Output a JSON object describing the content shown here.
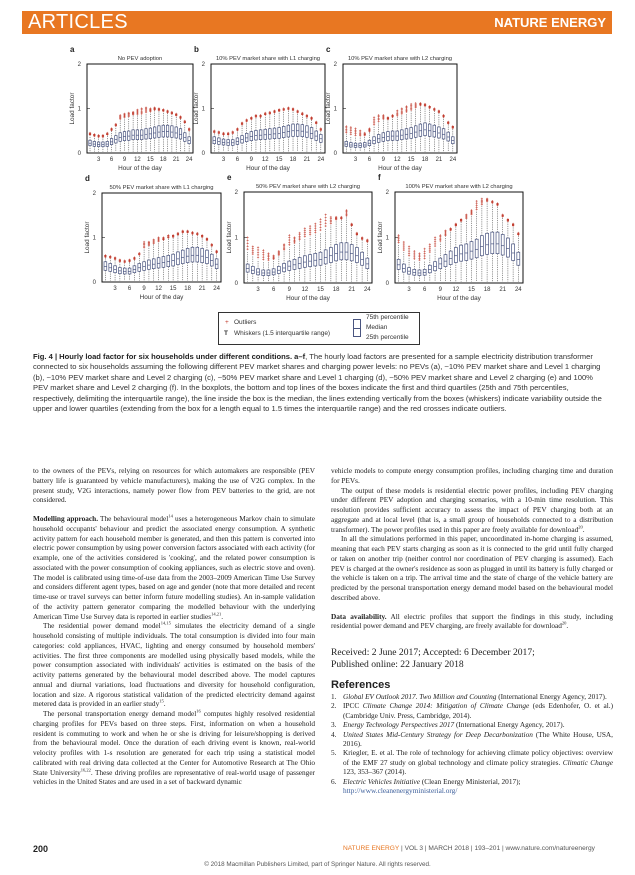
{
  "header": {
    "section": "ARTICLES",
    "journal": "NATURE ENERGY"
  },
  "chart_data": [
    {
      "panel": "a",
      "type": "boxplot",
      "title": "No PEV adoption",
      "xlabel": "Hour of the day",
      "ylabel": "Load factor",
      "ylim": [
        0,
        2
      ],
      "yticks": [
        0,
        1,
        2
      ],
      "xticks": [
        3,
        6,
        9,
        12,
        15,
        18,
        21,
        24
      ],
      "median": [
        0.22,
        0.2,
        0.19,
        0.19,
        0.2,
        0.25,
        0.3,
        0.35,
        0.37,
        0.38,
        0.4,
        0.4,
        0.4,
        0.42,
        0.43,
        0.45,
        0.47,
        0.48,
        0.48,
        0.47,
        0.45,
        0.42,
        0.35,
        0.28
      ],
      "q1_ratio": 0.75,
      "q3_ratio": 1.3,
      "outlier_max": [
        0.45,
        0.42,
        0.4,
        0.4,
        0.45,
        0.55,
        0.65,
        0.85,
        0.88,
        0.9,
        0.92,
        0.97,
        1.0,
        1.02,
        1.0,
        1.02,
        1.0,
        0.98,
        0.95,
        0.92,
        0.88,
        0.82,
        0.72,
        0.55
      ]
    },
    {
      "panel": "b",
      "type": "boxplot",
      "title": "10% PEV market share with L1 charging",
      "xlabel": "Hour of the day",
      "ylabel": "Load factor",
      "ylim": [
        0,
        2
      ],
      "yticks": [
        0,
        1,
        2
      ],
      "xticks": [
        3,
        6,
        9,
        12,
        15,
        18,
        21,
        24
      ],
      "median": [
        0.28,
        0.26,
        0.24,
        0.23,
        0.23,
        0.26,
        0.3,
        0.34,
        0.37,
        0.39,
        0.4,
        0.41,
        0.42,
        0.43,
        0.44,
        0.46,
        0.48,
        0.5,
        0.5,
        0.49,
        0.47,
        0.44,
        0.38,
        0.32
      ],
      "q1_ratio": 0.75,
      "q3_ratio": 1.3,
      "outlier_max": [
        0.5,
        0.48,
        0.45,
        0.45,
        0.48,
        0.55,
        0.68,
        0.75,
        0.8,
        0.85,
        0.85,
        0.9,
        0.92,
        0.95,
        0.98,
        1.0,
        1.02,
        1.0,
        0.95,
        0.9,
        0.85,
        0.8,
        0.7,
        0.55
      ]
    },
    {
      "panel": "c",
      "type": "boxplot",
      "title": "10% PEV market share with L2 charging",
      "xlabel": "Hour of the day",
      "ylabel": "Load factor",
      "ylim": [
        0,
        2
      ],
      "yticks": [
        0,
        1,
        2
      ],
      "xticks": [
        3,
        6,
        9,
        12,
        15,
        18,
        21,
        24
      ],
      "median": [
        0.2,
        0.18,
        0.17,
        0.17,
        0.18,
        0.22,
        0.28,
        0.32,
        0.35,
        0.37,
        0.38,
        0.38,
        0.4,
        0.42,
        0.44,
        0.47,
        0.5,
        0.52,
        0.5,
        0.48,
        0.45,
        0.42,
        0.36,
        0.28
      ],
      "q1_ratio": 0.75,
      "q3_ratio": 1.3,
      "outlier_max": [
        0.6,
        0.58,
        0.55,
        0.5,
        0.45,
        0.55,
        0.8,
        0.85,
        0.85,
        0.8,
        0.85,
        0.95,
        1.0,
        1.05,
        1.1,
        1.12,
        1.12,
        1.1,
        1.05,
        1.0,
        0.95,
        0.85,
        0.7,
        0.6
      ]
    },
    {
      "panel": "d",
      "type": "boxplot",
      "title": "50% PEV market share with L1 charging",
      "xlabel": "Hour of the day",
      "ylabel": "Load factor",
      "ylim": [
        0,
        2
      ],
      "yticks": [
        0,
        1,
        2
      ],
      "xticks": [
        3,
        6,
        9,
        12,
        15,
        18,
        21,
        24
      ],
      "median": [
        0.35,
        0.32,
        0.28,
        0.25,
        0.24,
        0.24,
        0.28,
        0.32,
        0.35,
        0.38,
        0.4,
        0.42,
        0.44,
        0.46,
        0.48,
        0.52,
        0.55,
        0.58,
        0.6,
        0.6,
        0.58,
        0.55,
        0.48,
        0.4
      ],
      "q1_ratio": 0.75,
      "q3_ratio": 1.3,
      "outlier_max": [
        0.6,
        0.58,
        0.55,
        0.5,
        0.48,
        0.5,
        0.55,
        0.65,
        0.9,
        0.9,
        0.95,
        1.0,
        1.0,
        1.05,
        1.05,
        1.1,
        1.15,
        1.15,
        1.12,
        1.1,
        1.05,
        0.98,
        0.85,
        0.7
      ]
    },
    {
      "panel": "e",
      "type": "boxplot",
      "title": "50% PEV market share with L2 charging",
      "xlabel": "Hour of the day",
      "ylabel": "Load factor",
      "ylim": [
        0,
        2
      ],
      "yticks": [
        0,
        1,
        2
      ],
      "xticks": [
        3,
        6,
        9,
        12,
        15,
        18,
        21,
        24
      ],
      "median": [
        0.32,
        0.28,
        0.24,
        0.22,
        0.22,
        0.24,
        0.28,
        0.33,
        0.37,
        0.4,
        0.43,
        0.46,
        0.48,
        0.5,
        0.52,
        0.56,
        0.6,
        0.65,
        0.68,
        0.68,
        0.65,
        0.6,
        0.52,
        0.42
      ],
      "q1_ratio": 0.75,
      "q3_ratio": 1.3,
      "outlier_max": [
        1.0,
        0.8,
        0.78,
        0.72,
        0.65,
        0.6,
        0.7,
        0.85,
        1.05,
        1.0,
        1.1,
        1.2,
        1.25,
        1.3,
        1.4,
        1.5,
        1.45,
        1.45,
        1.45,
        1.6,
        1.3,
        1.1,
        1.0,
        0.95
      ]
    },
    {
      "panel": "f",
      "type": "boxplot",
      "title": "100% PEV market share with L2 charging",
      "xlabel": "Hour of the day",
      "ylabel": "Load factor",
      "ylim": [
        0,
        2
      ],
      "yticks": [
        0,
        1,
        2
      ],
      "xticks": [
        3,
        6,
        9,
        12,
        15,
        18,
        21,
        24
      ],
      "median": [
        0.4,
        0.32,
        0.26,
        0.23,
        0.22,
        0.23,
        0.3,
        0.36,
        0.42,
        0.48,
        0.54,
        0.6,
        0.64,
        0.66,
        0.7,
        0.74,
        0.8,
        0.84,
        0.86,
        0.86,
        0.82,
        0.76,
        0.66,
        0.52
      ],
      "q1_ratio": 0.75,
      "q3_ratio": 1.3,
      "outlier_max": [
        1.05,
        0.9,
        0.8,
        0.7,
        0.65,
        0.75,
        0.85,
        1.0,
        1.05,
        1.15,
        1.2,
        1.3,
        1.4,
        1.5,
        1.6,
        1.8,
        1.85,
        1.85,
        1.8,
        1.75,
        1.5,
        1.4,
        1.3,
        1.1
      ]
    }
  ],
  "colors": {
    "accent": "#e87722",
    "outlier": "#c0392b",
    "box": "#4a5580"
  },
  "legend": {
    "outliers": "Outliers",
    "whiskers": "Whiskers (1.5 interquartile range)",
    "p75": "75th percentile",
    "median": "Median",
    "p25": "25th percentile"
  },
  "caption": {
    "bold": "Fig. 4 | Hourly load factor for six households under different conditions. a–f",
    "text": ", The hourly load factors are presented for a sample electricity distribution transformer connected to six households assuming the following different PEV market shares and charging power levels: no PEVs (a), ~10% PEV market share and Level 1 charging (b), ~10% PEV market share and Level 2 charging (c), ~50% PEV market share and Level 1 charging (d), ~50% PEV market share and Level 2 charging (e) and 100% PEV market share and Level 2 charging (f). In the boxplots, the bottom and top lines of the boxes indicate the first and third quartiles (25th and 75th percentiles, respectively, delimiting the interquartile range), the line inside the box is the median, the lines extending vertically from the boxes (whiskers) indicate variability outside the upper and lower quartiles (extending from the box for a length equal to 1.5 times the interquartile range) and the red crosses indicate outliers."
  },
  "left": {
    "p1": "to the owners of the PEVs, relying on resources for which automakers are responsible (PEV battery life is guaranteed by vehicle manufacturers), making the use of V2G complex. In the present study, V2G interactions, namely power flow from PEV batteries to the grid, are not considered.",
    "p2_head": "Modelling approach.",
    "p2a": " The behavioural model",
    "p2a_ref": "14",
    "p2b": " uses a heterogeneous Markov chain to simulate household occupants' behaviour and predict the associated energy consumption. A synthetic activity pattern for each household member is generated, and then this pattern is converted into electric power consumption by using power conversion factors associated with each activity (for example, one of the activities considered is 'cooking', and the related power consumption is associated with the power consumption of cooking appliances, such as electric stove and oven). The model is calibrated using time-of-use data from the 2003–2009 American Time Use Survey and considers different agent types, based on age and gender (note that more detailed and recent time-use or travel surveys can better inform future modelling studies). An in-sample validation of the activity pattern generator comparing the modelled behaviour with the underlying American Time Use Survey data is reported in earlier studies",
    "p2b_ref": "14,21",
    "p3a": "The residential power demand model",
    "p3a_ref": "14,15",
    "p3b": " simulates the electricity demand of a single household consisting of multiple individuals. The total consumption is divided into four main categories: cold appliances, HVAC, lighting and energy consumed by household members' activities. The first three components are modelled using physically based models, while the power consumption associated with individuals' activities is estimated on the basis of the activity patterns generated by the behavioural model described above. The model captures annual and diurnal variations, load fluctuations and diversity for household configuration, location and size. A rigorous statistical validation of the predicted electricity demand against metered data is provided in an earlier study",
    "p3b_ref": "15",
    "p4a": "The personal transportation energy demand model",
    "p4a_ref": "16",
    "p4b": " computes highly resolved residential charging profiles for PEVs based on three steps. First, information on when a household resident is commuting to work and when he or she is driving for leisure/shopping is derived from the behavioural model. Once the duration of each driving event is known, real-world velocity profiles with 1-s resolution are generated for each trip using a statistical model calibrated with real driving data collected at the Center for Automotive Research at The Ohio State University",
    "p4b_ref": "16,22",
    "p4c": ". These driving profiles are representative of real-world usage of passenger vehicles in the United States and are used in a set of backward dynamic"
  },
  "right": {
    "p1": "vehicle models to compute energy consumption profiles, including charging time and duration for PEVs.",
    "p2a": "The output of these models is residential electric power profiles, including PEV charging under different PEV adoption and charging scenarios, with a 10-min time resolution. This resolution provides sufficient accuracy to assess the impact of PEV charging both at an aggregate and at local level (that is, a small group of households connected to a distribution transformer). The power profiles used in this paper are freely available for download",
    "p2_ref": "20",
    "p3": "In all the simulations performed in this paper, uncoordinated in-home charging is assumed, meaning that each PEV starts charging as soon as it is connected to the grid until fully charged or taken on another trip (neither control nor coordination of PEV charging is assumed). Each PEV is charged at the owner's residence as soon as plugged in until its battery is fully charged or the vehicle is taken on a trip. The arrival time and the state of charge of the vehicle battery are predicted by the personal transportation energy demand model based on the behavioural model described above.",
    "p4_head": "Data availability.",
    "p4": " All electric profiles that support the findings in this study, including residential power demand and PEV charging, are freely available for download",
    "p4_ref": "20",
    "received": "Received: 2 June 2017; Accepted: 6 December 2017;",
    "published": "Published online: 22 January 2018",
    "refs_title": "References",
    "refs": [
      {
        "n": "1.",
        "it": "Global EV Outlook 2017. Two Million and Counting",
        "rest": " (International Energy Agency, 2017)."
      },
      {
        "n": "2.",
        "pre": "IPCC ",
        "it": "Climate Change 2014: Mitigation of Climate Change",
        "rest": " (eds Edenhofer, O. et al.) (Cambridge Univ. Press, Cambridge, 2014)."
      },
      {
        "n": "3.",
        "it": "Energy Technology Perspectives 2017",
        "rest": " (International Energy Agency, 2017)."
      },
      {
        "n": "4.",
        "it": "United States Mid-Century Strategy for Deep Decarbonization",
        "rest": " (The White House, USA, 2016)."
      },
      {
        "n": "5.",
        "pre": "Kriegler, E. et al. The role of technology for achieving climate policy objectives: overview of the EMF 27 study on global technology and climate policy strategies. ",
        "it": "Climatic Change",
        "rest": " 123, 353–367 (2014)."
      },
      {
        "n": "6.",
        "it": "Electric Vehicles Initiative",
        "rest": " (Clean Energy Ministerial, 2017);",
        "url": "http://www.cleanenergyministerial.org/"
      }
    ]
  },
  "footer": {
    "page": "200",
    "journal": "NATURE ENERGY",
    "info": " | VOL 3 | MARCH 2018 | 193–201 | www.nature.com/natureenergy",
    "copyright": "© 2018 Macmillan Publishers Limited, part of Springer Nature. All rights reserved."
  }
}
